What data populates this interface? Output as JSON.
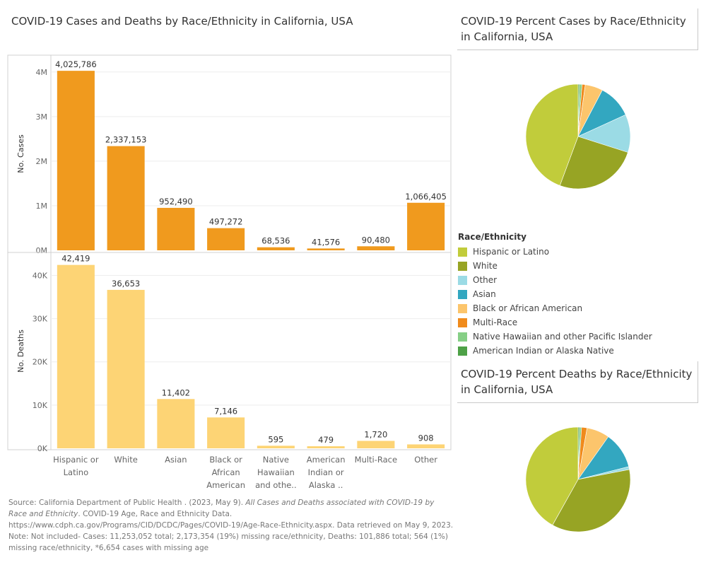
{
  "main_title": "COVID-19 Cases and Deaths by Race/Ethnicity in California, USA",
  "cases_pie_title": "COVID-19 Percent Cases by Race/Ethnicity in California, USA",
  "deaths_pie_title": "COVID-19 Percent Deaths by Race/Ethnicity in California, USA",
  "colors": {
    "cases_bar": "#f09a1e",
    "deaths_bar": "#fdd475",
    "grid": "#eeeeee",
    "axis": "#d0d0d0",
    "text": "#333333",
    "tick": "#666666"
  },
  "legend": {
    "title": "Race/Ethnicity",
    "items": [
      {
        "label": "Hispanic or Latino",
        "color": "#c1cc3b"
      },
      {
        "label": "White",
        "color": "#97a424"
      },
      {
        "label": "Other",
        "color": "#9bdbe5"
      },
      {
        "label": "Asian",
        "color": "#33a7c0"
      },
      {
        "label": "Black or African American",
        "color": "#fcc56c"
      },
      {
        "label": "Multi-Race",
        "color": "#f08b1c"
      },
      {
        "label": "Native Hawaiian and other Pacific Islander",
        "color": "#86cf86"
      },
      {
        "label": "American Indian or Alaska Native",
        "color": "#4ea147"
      }
    ]
  },
  "footer": {
    "line1_pre": "Source: California Department of Public Health . (2023, May 9). ",
    "line1_italic": "All Cases and Deaths associated with COVID-19 by Race and Ethnicity",
    "line1_post": ". COVID-19 Age, Race and Ethnicity Data.",
    "line2": "https://www.cdph.ca.gov/Programs/CID/DCDC/Pages/COVID-19/Age-Race-Ethnicity.aspx. Data retrieved on May 9, 2023.",
    "line3": "Note: Not included- Cases: 11,253,052 total; 2,173,354 (19%) missing race/ethnicity, Deaths: 101,886 total; 564 (1%) missing race/ethnicity, *6,654 cases with missing age"
  },
  "chart_data": [
    {
      "type": "bar",
      "title": "COVID-19 Cases and Deaths by Race/Ethnicity in California, USA",
      "categories": [
        [
          "Hispanic or",
          "Latino"
        ],
        [
          "White"
        ],
        [
          "Asian"
        ],
        [
          "Black or",
          "African",
          "American"
        ],
        [
          "Native",
          "Hawaiian",
          "and othe.."
        ],
        [
          "American",
          "Indian or",
          "Alaska .."
        ],
        [
          "Multi-Race"
        ],
        [
          "Other"
        ]
      ],
      "panels": [
        {
          "ylabel": "No. Cases",
          "values": [
            4025786,
            2337153,
            952490,
            497272,
            68536,
            41576,
            90480,
            1066405
          ],
          "labels": [
            "4,025,786",
            "2,337,153",
            "952,490",
            "497,272",
            "68,536",
            "41,576",
            "90,480",
            "1,066,405"
          ],
          "ylim": [
            0,
            4250000
          ],
          "ticks": [
            0,
            1000000,
            2000000,
            3000000,
            4000000
          ],
          "tick_labels": [
            "0M",
            "1M",
            "2M",
            "3M",
            "4M"
          ],
          "color_key": "cases_bar"
        },
        {
          "ylabel": "No. Deaths",
          "values": [
            42419,
            36653,
            11402,
            7146,
            595,
            479,
            1720,
            908
          ],
          "labels": [
            "42,419",
            "36,653",
            "11,402",
            "7,146",
            "595",
            "479",
            "1,720",
            "908"
          ],
          "ylim": [
            0,
            44000
          ],
          "ticks": [
            0,
            10000,
            20000,
            30000,
            40000
          ],
          "tick_labels": [
            "0K",
            "10K",
            "20K",
            "30K",
            "40K"
          ],
          "color_key": "deaths_bar"
        }
      ],
      "grid": true
    },
    {
      "type": "pie",
      "title": "COVID-19 Percent Cases by Race/Ethnicity in California, USA",
      "order": [
        "American Indian or Alaska Native",
        "Native Hawaiian and other Pacific Islander",
        "Multi-Race",
        "Black or African American",
        "Asian",
        "Other",
        "White",
        "Hispanic or Latino"
      ],
      "values": [
        41576,
        68536,
        90480,
        497272,
        952490,
        1066405,
        2337153,
        4025786
      ]
    },
    {
      "type": "pie",
      "title": "COVID-19 Percent Deaths by Race/Ethnicity in California, USA",
      "order": [
        "American Indian or Alaska Native",
        "Native Hawaiian and other Pacific Islander",
        "Multi-Race",
        "Black or African American",
        "Asian",
        "Other",
        "White",
        "Hispanic or Latino"
      ],
      "values": [
        479,
        595,
        1720,
        7146,
        11402,
        908,
        36653,
        42419
      ]
    }
  ]
}
